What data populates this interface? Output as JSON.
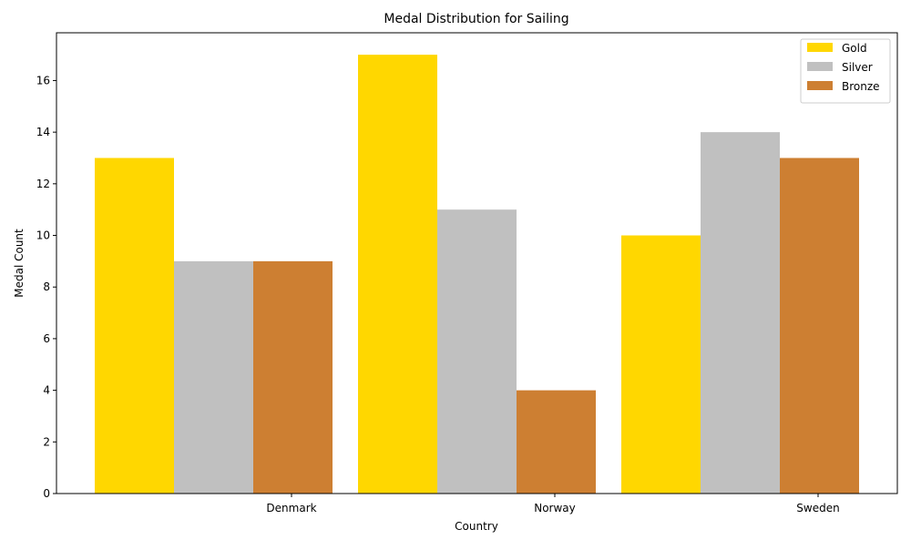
{
  "chart_data": {
    "type": "bar",
    "title": "Medal Distribution for Sailing",
    "xlabel": "Country",
    "ylabel": "Medal Count",
    "categories": [
      "Denmark",
      "Norway",
      "Sweden"
    ],
    "series": [
      {
        "name": "Gold",
        "color": "#FFD700",
        "values": [
          13,
          17,
          10
        ]
      },
      {
        "name": "Silver",
        "color": "#C0C0C0",
        "values": [
          9,
          11,
          14
        ]
      },
      {
        "name": "Bronze",
        "color": "#CD7F32",
        "values": [
          9,
          4,
          13
        ]
      }
    ],
    "ylim": [
      0,
      17.85
    ],
    "yticks": [
      0,
      2,
      4,
      6,
      8,
      10,
      12,
      14,
      16
    ],
    "grid": false,
    "legend": "top-right"
  }
}
